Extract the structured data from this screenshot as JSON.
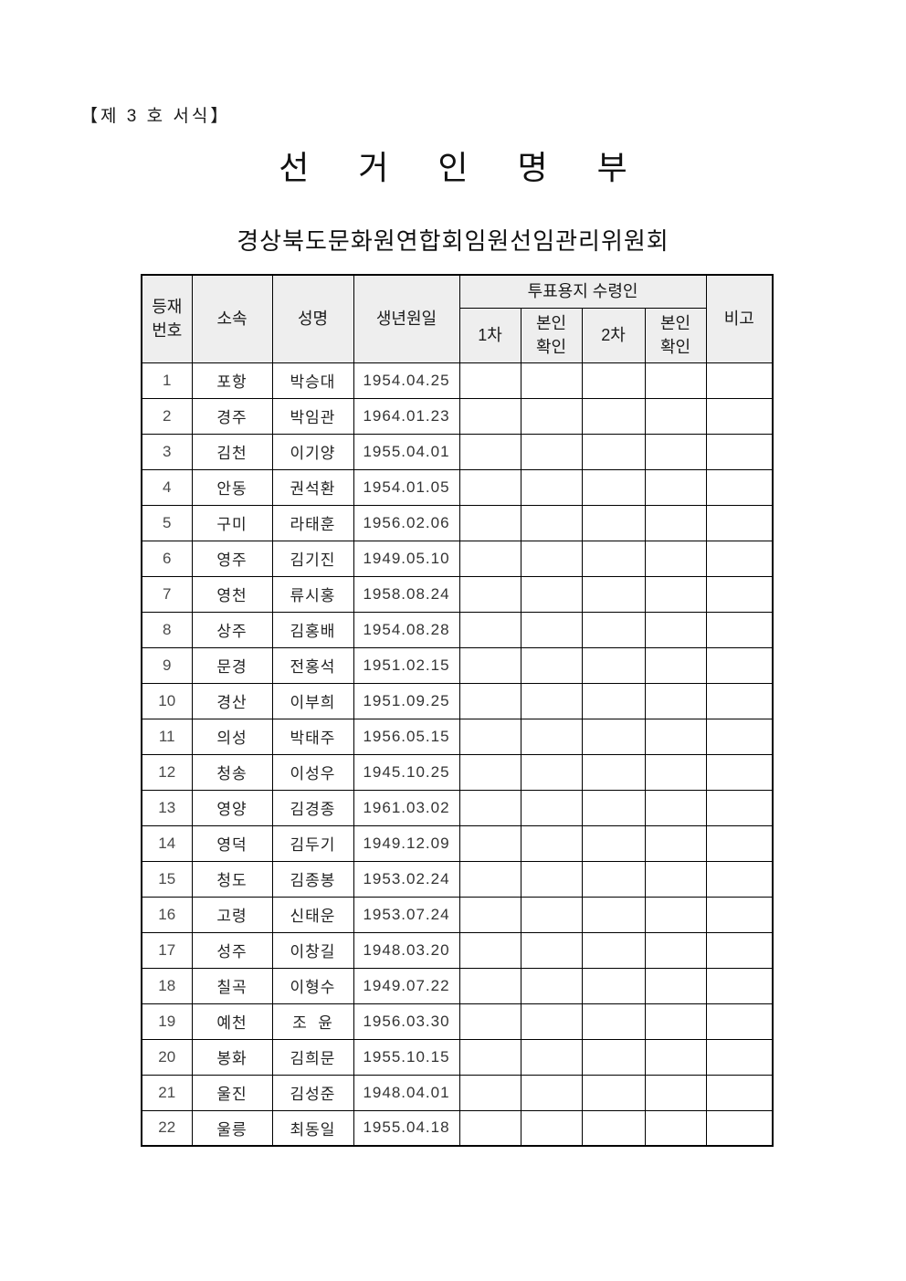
{
  "form_label": "【제 3 호 서식】",
  "title": "선 거 인 명 부",
  "subtitle": "경상북도문화원연합회임원선임관리위원회",
  "colors": {
    "header_bg": "#eeeeee",
    "border": "#000000",
    "text": "#1f1f1f"
  },
  "table": {
    "headers": {
      "reg_no": "등재\n번호",
      "affiliation": "소속",
      "name": "성명",
      "birth": "생년원일",
      "ballot_group": "투표용지 수령인",
      "first_round": "1차",
      "self_confirm_1": "본인\n확인",
      "second_round": "2차",
      "self_confirm_2": "본인\n확인",
      "note": "비고"
    },
    "rows": [
      {
        "no": "1",
        "affiliation": "포항",
        "name": "박승대",
        "birth": "1954.04.25"
      },
      {
        "no": "2",
        "affiliation": "경주",
        "name": "박임관",
        "birth": "1964.01.23"
      },
      {
        "no": "3",
        "affiliation": "김천",
        "name": "이기양",
        "birth": "1955.04.01"
      },
      {
        "no": "4",
        "affiliation": "안동",
        "name": "권석환",
        "birth": "1954.01.05"
      },
      {
        "no": "5",
        "affiliation": "구미",
        "name": "라태훈",
        "birth": "1956.02.06"
      },
      {
        "no": "6",
        "affiliation": "영주",
        "name": "김기진",
        "birth": "1949.05.10"
      },
      {
        "no": "7",
        "affiliation": "영천",
        "name": "류시홍",
        "birth": "1958.08.24"
      },
      {
        "no": "8",
        "affiliation": "상주",
        "name": "김홍배",
        "birth": "1954.08.28"
      },
      {
        "no": "9",
        "affiliation": "문경",
        "name": "전홍석",
        "birth": "1951.02.15"
      },
      {
        "no": "10",
        "affiliation": "경산",
        "name": "이부희",
        "birth": "1951.09.25"
      },
      {
        "no": "11",
        "affiliation": "의성",
        "name": "박태주",
        "birth": "1956.05.15"
      },
      {
        "no": "12",
        "affiliation": "청송",
        "name": "이성우",
        "birth": "1945.10.25"
      },
      {
        "no": "13",
        "affiliation": "영양",
        "name": "김경종",
        "birth": "1961.03.02"
      },
      {
        "no": "14",
        "affiliation": "영덕",
        "name": "김두기",
        "birth": "1949.12.09"
      },
      {
        "no": "15",
        "affiliation": "청도",
        "name": "김종봉",
        "birth": "1953.02.24"
      },
      {
        "no": "16",
        "affiliation": "고령",
        "name": "신태운",
        "birth": "1953.07.24"
      },
      {
        "no": "17",
        "affiliation": "성주",
        "name": "이창길",
        "birth": "1948.03.20"
      },
      {
        "no": "18",
        "affiliation": "칠곡",
        "name": "이형수",
        "birth": "1949.07.22"
      },
      {
        "no": "19",
        "affiliation": "예천",
        "name": "조  윤",
        "birth": "1956.03.30"
      },
      {
        "no": "20",
        "affiliation": "봉화",
        "name": "김희문",
        "birth": "1955.10.15"
      },
      {
        "no": "21",
        "affiliation": "울진",
        "name": "김성준",
        "birth": "1948.04.01"
      },
      {
        "no": "22",
        "affiliation": "울릉",
        "name": "최동일",
        "birth": "1955.04.18"
      }
    ]
  }
}
